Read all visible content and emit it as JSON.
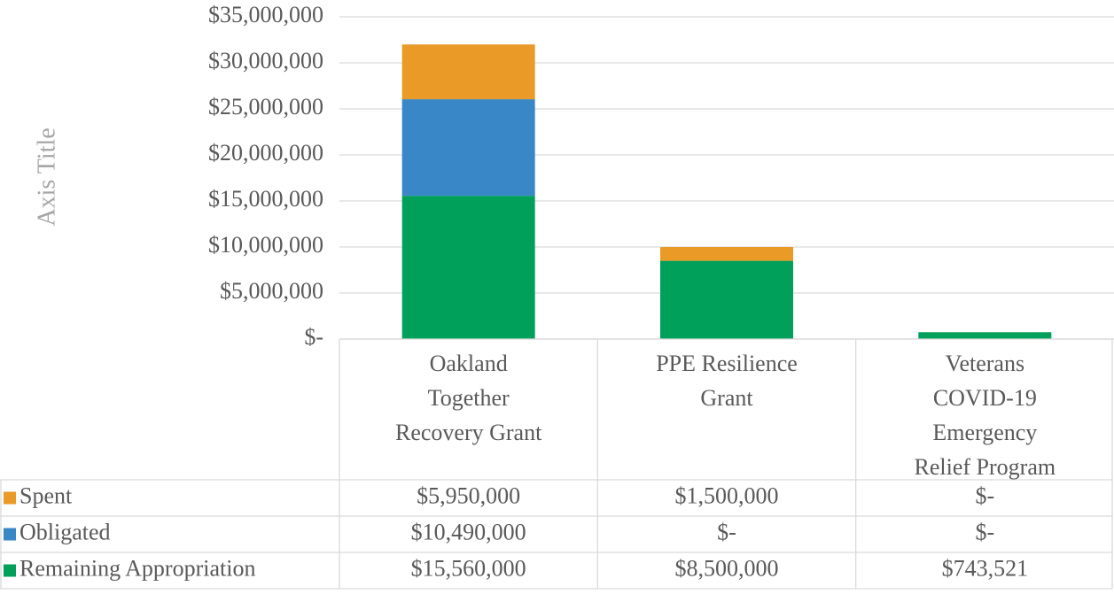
{
  "chart_data": {
    "type": "stacked_bar",
    "y_axis_title": "Axis Title",
    "categories": [
      "Oakland Together Recovery Grant",
      "PPE Resilience Grant",
      "Veterans COVID-19 Emergency Relief Program"
    ],
    "series": [
      {
        "name": "Spent",
        "color": "#EA9A26",
        "values": [
          5950000,
          1500000,
          0
        ],
        "value_labels": [
          "$5,950,000",
          "$1,500,000",
          "$-"
        ]
      },
      {
        "name": "Obligated",
        "color": "#3A87C8",
        "values": [
          10490000,
          0,
          0
        ],
        "value_labels": [
          "$10,490,000",
          "$-",
          "$-"
        ]
      },
      {
        "name": "Remaining Appropriation",
        "color": "#00A05A",
        "values": [
          15560000,
          8500000,
          743521
        ],
        "value_labels": [
          "$15,560,000",
          "$8,500,000",
          "$743,521"
        ]
      }
    ],
    "ylim": [
      0,
      35000000
    ],
    "yticks": [
      {
        "value": 0,
        "label": "$-"
      },
      {
        "value": 5000000,
        "label": "$5,000,000"
      },
      {
        "value": 10000000,
        "label": "$10,000,000"
      },
      {
        "value": 15000000,
        "label": "$15,000,000"
      },
      {
        "value": 20000000,
        "label": "$20,000,000"
      },
      {
        "value": 25000000,
        "label": "$25,000,000"
      },
      {
        "value": 30000000,
        "label": "$30,000,000"
      },
      {
        "value": 35000000,
        "label": "$35,000,000"
      }
    ],
    "grid": true,
    "data_table": true
  }
}
